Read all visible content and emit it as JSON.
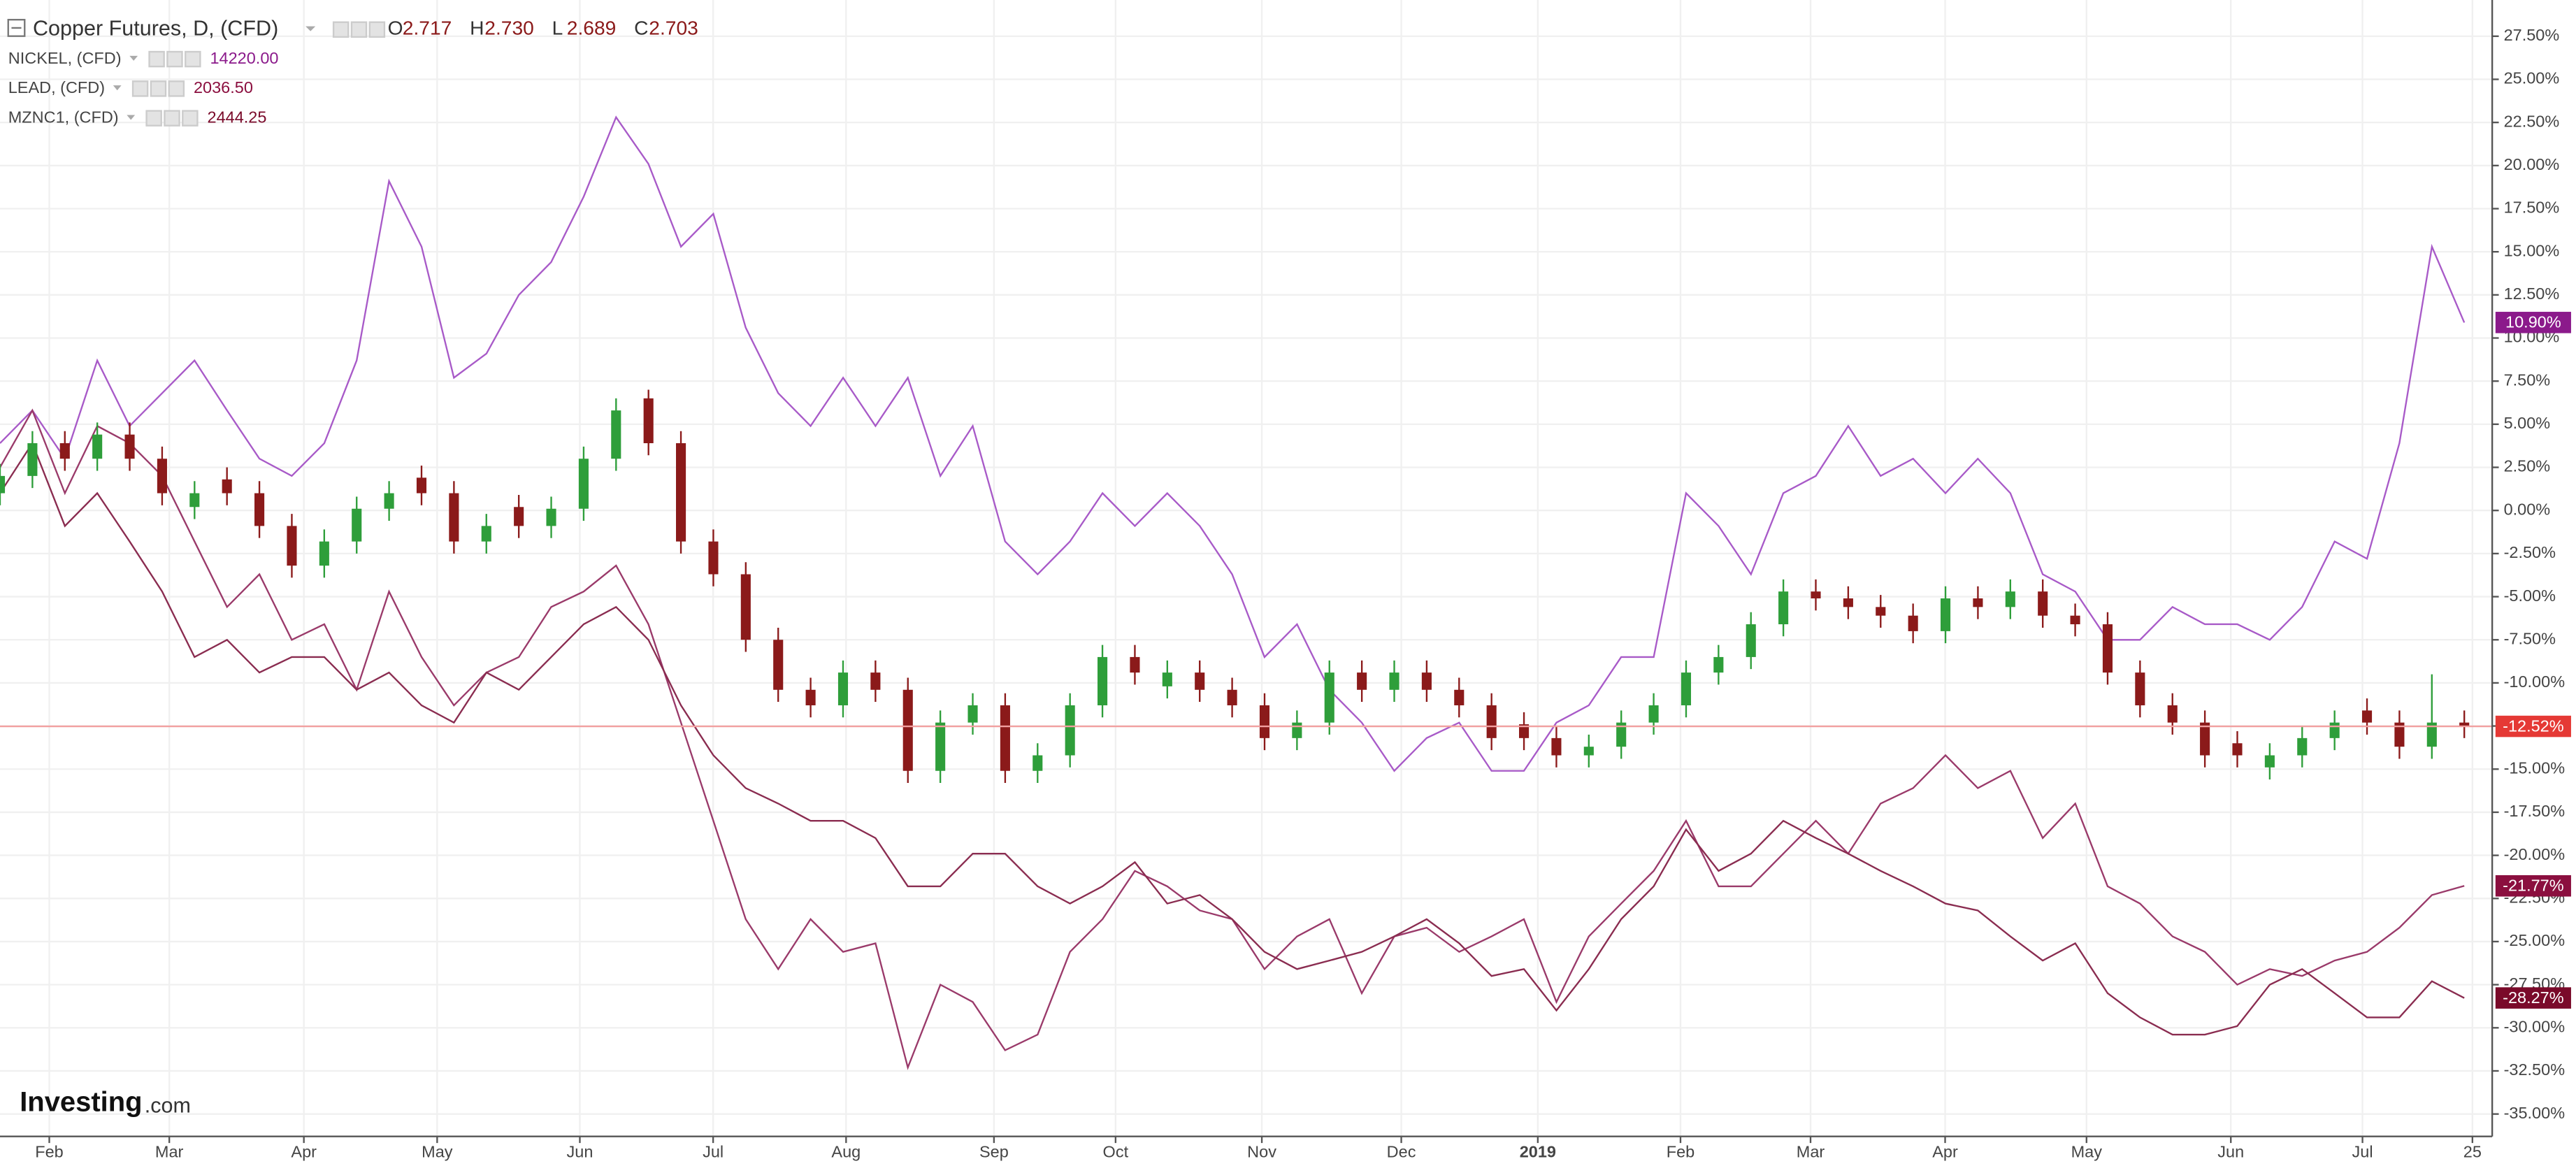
{
  "chart_data": {
    "type": "candlestick",
    "main": {
      "name": "Copper Futures, D, (CFD)",
      "ohlc": [
        {
          "key": "O",
          "value": "2.717"
        },
        {
          "key": "H",
          "value": "2.730"
        },
        {
          "key": "L",
          "value": "2.689"
        },
        {
          "key": "C",
          "value": "2.703"
        }
      ],
      "open": [
        1.0,
        2.0,
        3.9,
        3.0,
        4.4,
        3.0,
        0.2,
        1.8,
        1.0,
        -0.9,
        -3.2,
        -1.8,
        0.1,
        1.9,
        1.0,
        -1.8,
        0.2,
        -0.9,
        0.1,
        3.0,
        6.5,
        3.9,
        -1.8,
        -3.7,
        -7.5,
        -10.4,
        -11.3,
        -9.4,
        -10.4,
        -15.1,
        -12.3,
        -11.3,
        -15.1,
        -14.2,
        -11.3,
        -8.5,
        -10.2,
        -9.4,
        -10.4,
        -11.3,
        -13.2,
        -12.3,
        -9.4,
        -10.4,
        -9.4,
        -10.4,
        -11.3,
        -12.4,
        -13.2,
        -14.2,
        -13.7,
        -12.3,
        -11.3,
        -9.4,
        -8.5,
        -6.6,
        -4.7,
        -5.1,
        -5.6,
        -6.1,
        -7.0,
        -5.1,
        -5.6,
        -4.7,
        -6.1,
        -6.6,
        -9.4,
        -11.3,
        -12.3,
        -13.5,
        -14.9,
        -14.2,
        -13.2,
        -11.6,
        -12.3,
        -13.7,
        -12.3
      ],
      "high": [
        2.7,
        4.6,
        4.6,
        5.1,
        5.1,
        3.7,
        1.7,
        2.5,
        1.7,
        -0.2,
        -1.1,
        0.8,
        1.7,
        2.6,
        1.7,
        -0.2,
        0.9,
        0.8,
        3.7,
        6.5,
        7.0,
        4.6,
        -1.1,
        -3.0,
        -6.8,
        -9.7,
        -8.7,
        -8.7,
        -9.7,
        -11.6,
        -10.6,
        -10.6,
        -13.5,
        -10.6,
        -7.8,
        -7.8,
        -8.7,
        -8.7,
        -9.7,
        -10.6,
        -11.6,
        -8.7,
        -8.7,
        -8.7,
        -8.7,
        -9.7,
        -10.6,
        -11.7,
        -12.5,
        -13.0,
        -11.6,
        -10.6,
        -8.7,
        -7.8,
        -5.9,
        -4.0,
        -4.0,
        -4.4,
        -4.9,
        -5.4,
        -4.4,
        -4.4,
        -4.0,
        -4.0,
        -5.4,
        -5.9,
        -8.7,
        -10.6,
        -11.6,
        -12.8,
        -13.5,
        -12.5,
        -11.6,
        -10.9,
        -11.6,
        -9.5,
        -11.6
      ],
      "low": [
        0.3,
        1.3,
        2.3,
        2.3,
        2.3,
        0.3,
        -0.5,
        0.3,
        -1.6,
        -3.9,
        -3.9,
        -2.5,
        -0.6,
        0.3,
        -2.5,
        -2.5,
        -1.6,
        -1.6,
        -0.6,
        2.3,
        3.2,
        -2.5,
        -4.4,
        -8.2,
        -11.1,
        -12.0,
        -12.0,
        -11.1,
        -15.8,
        -15.8,
        -13.0,
        -15.8,
        -15.8,
        -14.9,
        -12.0,
        -10.1,
        -10.9,
        -11.1,
        -12.0,
        -13.9,
        -13.9,
        -13.0,
        -11.1,
        -11.1,
        -11.1,
        -12.0,
        -13.9,
        -13.9,
        -14.9,
        -14.9,
        -14.4,
        -13.0,
        -12.0,
        -10.1,
        -9.2,
        -7.3,
        -5.8,
        -6.3,
        -6.8,
        -7.7,
        -7.7,
        -6.3,
        -6.3,
        -6.8,
        -7.3,
        -10.1,
        -12.0,
        -13.0,
        -14.9,
        -14.9,
        -15.6,
        -14.9,
        -13.9,
        -13.0,
        -14.4,
        -14.4,
        -13.2
      ],
      "close": [
        2.0,
        3.9,
        3.0,
        4.4,
        3.0,
        1.0,
        1.0,
        1.0,
        -0.9,
        -3.2,
        -1.8,
        0.1,
        1.0,
        1.0,
        -1.8,
        -0.9,
        -0.9,
        0.1,
        3.0,
        5.8,
        3.9,
        -1.8,
        -3.7,
        -7.5,
        -10.4,
        -11.3,
        -9.4,
        -10.4,
        -15.1,
        -12.3,
        -11.3,
        -15.1,
        -14.2,
        -11.3,
        -8.5,
        -9.4,
        -9.4,
        -10.4,
        -11.3,
        -13.2,
        -12.3,
        -9.4,
        -10.4,
        -9.4,
        -10.4,
        -11.3,
        -13.2,
        -13.2,
        -14.2,
        -13.7,
        -12.3,
        -11.3,
        -9.4,
        -8.5,
        -6.6,
        -4.7,
        -5.1,
        -5.6,
        -6.1,
        -7.0,
        -5.1,
        -5.6,
        -4.7,
        -6.1,
        -6.6,
        -9.4,
        -11.3,
        -12.3,
        -14.2,
        -14.2,
        -14.2,
        -13.2,
        -12.3,
        -12.3,
        -13.7,
        -12.3,
        -12.52
      ],
      "up_color": "#2e9e3a",
      "down_color": "#8b1a1a",
      "last_label": "-12.52%",
      "tag_color": "#e53935"
    },
    "series": [
      {
        "name": "NICKEL, (CFD)",
        "price": "14220.00",
        "color": "#a85ac8",
        "tag_color": "#8b1a8b",
        "last_label": "10.90%",
        "values": [
          3.9,
          5.8,
          3.0,
          8.7,
          4.9,
          6.8,
          8.7,
          5.8,
          3.0,
          2.0,
          3.9,
          8.7,
          19.1,
          15.3,
          7.7,
          9.1,
          12.5,
          14.4,
          18.2,
          22.8,
          20.1,
          15.3,
          17.2,
          10.6,
          6.8,
          4.9,
          7.7,
          4.9,
          7.7,
          2.0,
          4.9,
          -1.8,
          -3.7,
          -1.8,
          1.0,
          -0.9,
          1.0,
          -0.9,
          -3.7,
          -8.5,
          -6.6,
          -10.4,
          -12.3,
          -15.1,
          -13.2,
          -12.3,
          -15.1,
          -15.1,
          -12.3,
          -11.3,
          -8.5,
          -8.5,
          1.0,
          -0.9,
          -3.7,
          1.0,
          2.0,
          4.9,
          2.0,
          3.0,
          1.0,
          3.0,
          1.0,
          -3.7,
          -4.7,
          -7.5,
          -7.5,
          -5.6,
          -6.6,
          -6.6,
          -7.5,
          -5.6,
          -1.8,
          -2.8,
          3.9,
          15.3,
          10.9
        ]
      },
      {
        "name": "LEAD, (CFD)",
        "price": "2036.50",
        "color": "#9a3a6a",
        "tag_color": "#8b0f3f",
        "last_label": "-21.77%",
        "values": [
          2.5,
          5.8,
          1.0,
          4.9,
          3.9,
          2.0,
          -1.8,
          -5.6,
          -3.7,
          -7.5,
          -6.6,
          -10.4,
          -4.7,
          -8.5,
          -11.3,
          -9.4,
          -8.5,
          -5.6,
          -4.7,
          -3.2,
          -6.6,
          -12.3,
          -18.0,
          -23.7,
          -26.6,
          -23.7,
          -25.6,
          -25.1,
          -32.3,
          -27.5,
          -28.5,
          -31.3,
          -30.4,
          -25.6,
          -23.7,
          -20.9,
          -21.8,
          -23.2,
          -23.7,
          -26.6,
          -24.7,
          -23.7,
          -28.0,
          -24.7,
          -24.2,
          -25.6,
          -24.7,
          -23.7,
          -28.5,
          -24.7,
          -22.8,
          -20.9,
          -18.0,
          -21.8,
          -21.8,
          -19.9,
          -18.0,
          -19.9,
          -17.0,
          -16.1,
          -14.2,
          -16.1,
          -15.1,
          -19.0,
          -17.0,
          -21.8,
          -22.8,
          -24.7,
          -25.6,
          -27.5,
          -26.6,
          -27.0,
          -26.1,
          -25.6,
          -24.2,
          -22.3,
          -21.77
        ]
      },
      {
        "name": "MZNC1, (CFD)",
        "price": "2444.25",
        "color": "#8a2c50",
        "tag_color": "#7a0a2a",
        "last_label": "-28.27%",
        "values": [
          1.0,
          3.9,
          -0.9,
          1.0,
          -1.8,
          -4.7,
          -8.5,
          -7.5,
          -9.4,
          -8.5,
          -8.5,
          -10.4,
          -9.4,
          -11.3,
          -12.3,
          -9.4,
          -10.4,
          -8.5,
          -6.6,
          -5.6,
          -7.5,
          -11.3,
          -14.2,
          -16.1,
          -17.0,
          -18.0,
          -18.0,
          -19.0,
          -21.8,
          -21.8,
          -19.9,
          -19.9,
          -21.8,
          -22.8,
          -21.8,
          -20.4,
          -22.8,
          -22.3,
          -23.7,
          -25.6,
          -26.6,
          -26.1,
          -25.6,
          -24.7,
          -23.7,
          -25.1,
          -27.0,
          -26.6,
          -29.0,
          -26.6,
          -23.7,
          -21.8,
          -18.5,
          -20.9,
          -19.9,
          -18.0,
          -19.0,
          -19.9,
          -20.9,
          -21.8,
          -22.8,
          -23.2,
          -24.7,
          -26.1,
          -25.1,
          -28.0,
          -29.4,
          -30.4,
          -30.4,
          -29.9,
          -27.5,
          -26.6,
          -28.0,
          -29.4,
          -29.4,
          -27.3,
          -28.27
        ]
      }
    ],
    "xlim": [
      0,
      76.85
    ],
    "xticks": [
      {
        "value": 1.52,
        "label": "Feb"
      },
      {
        "value": 5.22,
        "label": "Mar"
      },
      {
        "value": 9.37,
        "label": "Apr"
      },
      {
        "value": 13.48,
        "label": "May"
      },
      {
        "value": 17.88,
        "label": "Jun"
      },
      {
        "value": 21.99,
        "label": "Jul"
      },
      {
        "value": 26.09,
        "label": "Aug"
      },
      {
        "value": 30.65,
        "label": "Sep"
      },
      {
        "value": 34.4,
        "label": "Oct"
      },
      {
        "value": 38.91,
        "label": "Nov"
      },
      {
        "value": 43.21,
        "label": "Dec"
      },
      {
        "value": 47.42,
        "label": "2019"
      },
      {
        "value": 51.82,
        "label": "Feb"
      },
      {
        "value": 55.83,
        "label": "Mar"
      },
      {
        "value": 59.98,
        "label": "Apr"
      },
      {
        "value": 64.34,
        "label": "May"
      },
      {
        "value": 68.79,
        "label": "Jun"
      },
      {
        "value": 72.85,
        "label": "Jul"
      },
      {
        "value": 76.24,
        "label": "25"
      }
    ],
    "ylim": [
      -36.3,
      29.6
    ],
    "yticks": [
      {
        "value": 27.5,
        "label": "27.50%"
      },
      {
        "value": 25,
        "label": "25.00%"
      },
      {
        "value": 22.5,
        "label": "22.50%"
      },
      {
        "value": 20,
        "label": "20.00%"
      },
      {
        "value": 17.5,
        "label": "17.50%"
      },
      {
        "value": 15,
        "label": "15.00%"
      },
      {
        "value": 12.5,
        "label": "12.50%"
      },
      {
        "value": 10,
        "label": "10.00%"
      },
      {
        "value": 7.5,
        "label": "7.50%"
      },
      {
        "value": 5,
        "label": "5.00%"
      },
      {
        "value": 2.5,
        "label": "2.50%"
      },
      {
        "value": 0,
        "label": "0.00%"
      },
      {
        "value": -2.5,
        "label": "-2.50%"
      },
      {
        "value": -5,
        "label": "-5.00%"
      },
      {
        "value": -7.5,
        "label": "-7.50%"
      },
      {
        "value": -10,
        "label": "-10.00%"
      },
      {
        "value": -12.5,
        "label": "-12.50%"
      },
      {
        "value": -15,
        "label": "-15.00%"
      },
      {
        "value": -17.5,
        "label": "-17.50%"
      },
      {
        "value": -20,
        "label": "-20.00%"
      },
      {
        "value": -22.5,
        "label": "-22.50%"
      },
      {
        "value": -25,
        "label": "-25.00%"
      },
      {
        "value": -27.5,
        "label": "-27.50%"
      },
      {
        "value": -30,
        "label": "-30.00%"
      },
      {
        "value": -32.5,
        "label": "-32.50%"
      },
      {
        "value": -35,
        "label": "-35.00%"
      }
    ],
    "grid": true,
    "logo": {
      "brand": "Investing",
      "suffix": ".com"
    }
  }
}
